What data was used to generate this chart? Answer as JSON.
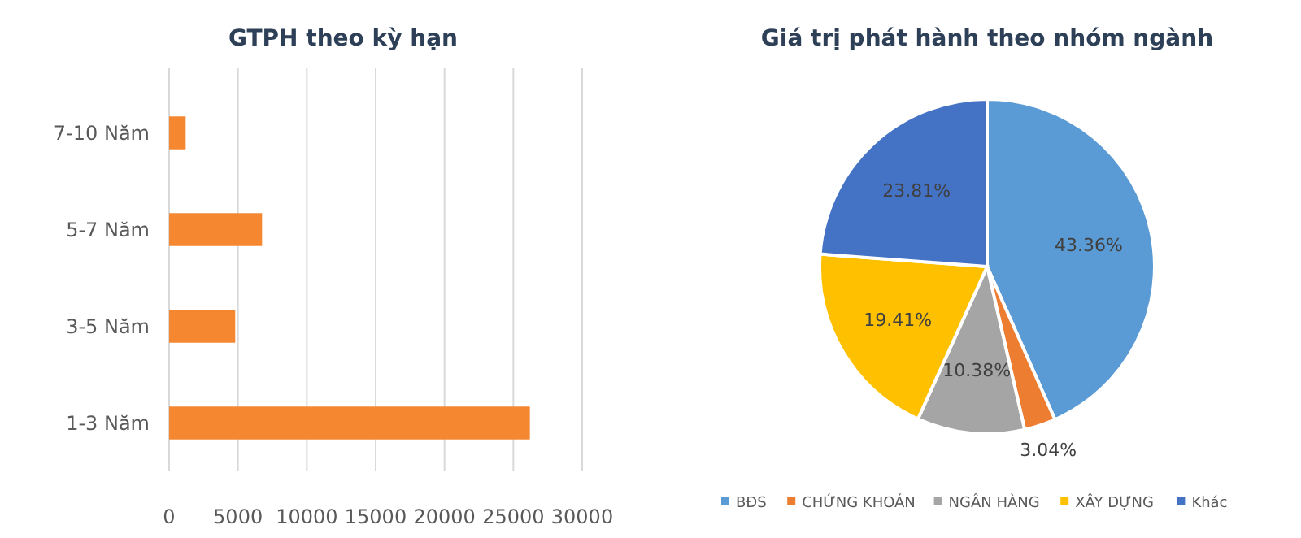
{
  "chart_data": [
    {
      "type": "bar",
      "title": "GTPH theo kỳ hạn",
      "orientation": "horizontal",
      "categories": [
        "7-10 Năm",
        "5-7 Năm",
        "3-5 Năm",
        "1-3 Năm"
      ],
      "values": [
        1200,
        6750,
        4800,
        26200
      ],
      "color": "#f58731",
      "xlim": [
        0,
        30000
      ],
      "xticks": [
        0,
        5000,
        10000,
        15000,
        20000,
        25000,
        30000
      ],
      "grid": "x"
    },
    {
      "type": "pie",
      "title": "Giá trị phát hành theo nhóm ngành",
      "categories": [
        "BĐS",
        "CHỨNG KHOÁN",
        "NGÂN HÀNG",
        "XÂY DỰNG",
        "Khác"
      ],
      "values": [
        43.36,
        3.04,
        10.38,
        19.41,
        23.81
      ],
      "colors": [
        "#5b9bd5",
        "#ed7d31",
        "#a5a5a5",
        "#ffc000",
        "#4472c4"
      ],
      "value_labels": [
        "43.36%",
        "3.04%",
        "10.38%",
        "19.41%",
        "23.81%"
      ],
      "legend": "bottom"
    }
  ]
}
